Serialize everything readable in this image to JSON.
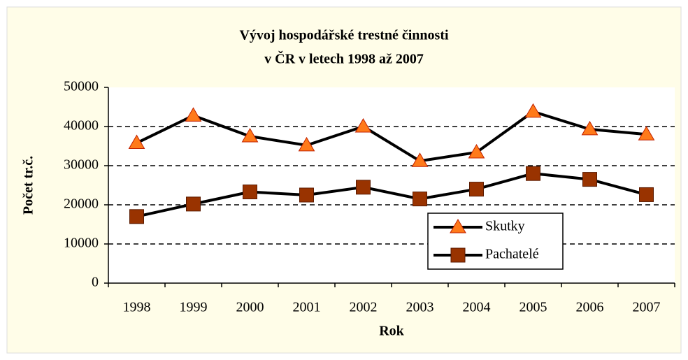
{
  "chart_data": {
    "type": "line",
    "title": [
      "Vývoj hospodářské trestné činnosti",
      "v ČR v letech 1998 až 2007"
    ],
    "xlabel": "Rok",
    "ylabel": "Počet tr.č.",
    "categories": [
      "1998",
      "1999",
      "2000",
      "2001",
      "2002",
      "2003",
      "2004",
      "2005",
      "2006",
      "2007"
    ],
    "series": [
      {
        "name": "Skutky",
        "color": "#ff7a1a",
        "marker": "triangle",
        "values": [
          35800,
          42800,
          37500,
          35200,
          40000,
          31200,
          33400,
          43800,
          39300,
          38000
        ]
      },
      {
        "name": "Pachatelé",
        "color": "#993300",
        "marker": "square",
        "values": [
          17000,
          20200,
          23300,
          22500,
          24500,
          21500,
          24000,
          28000,
          26500,
          22600
        ]
      }
    ],
    "ylim": [
      0,
      50000
    ],
    "yticks": [
      0,
      10000,
      20000,
      30000,
      40000,
      50000
    ],
    "grid": true
  }
}
